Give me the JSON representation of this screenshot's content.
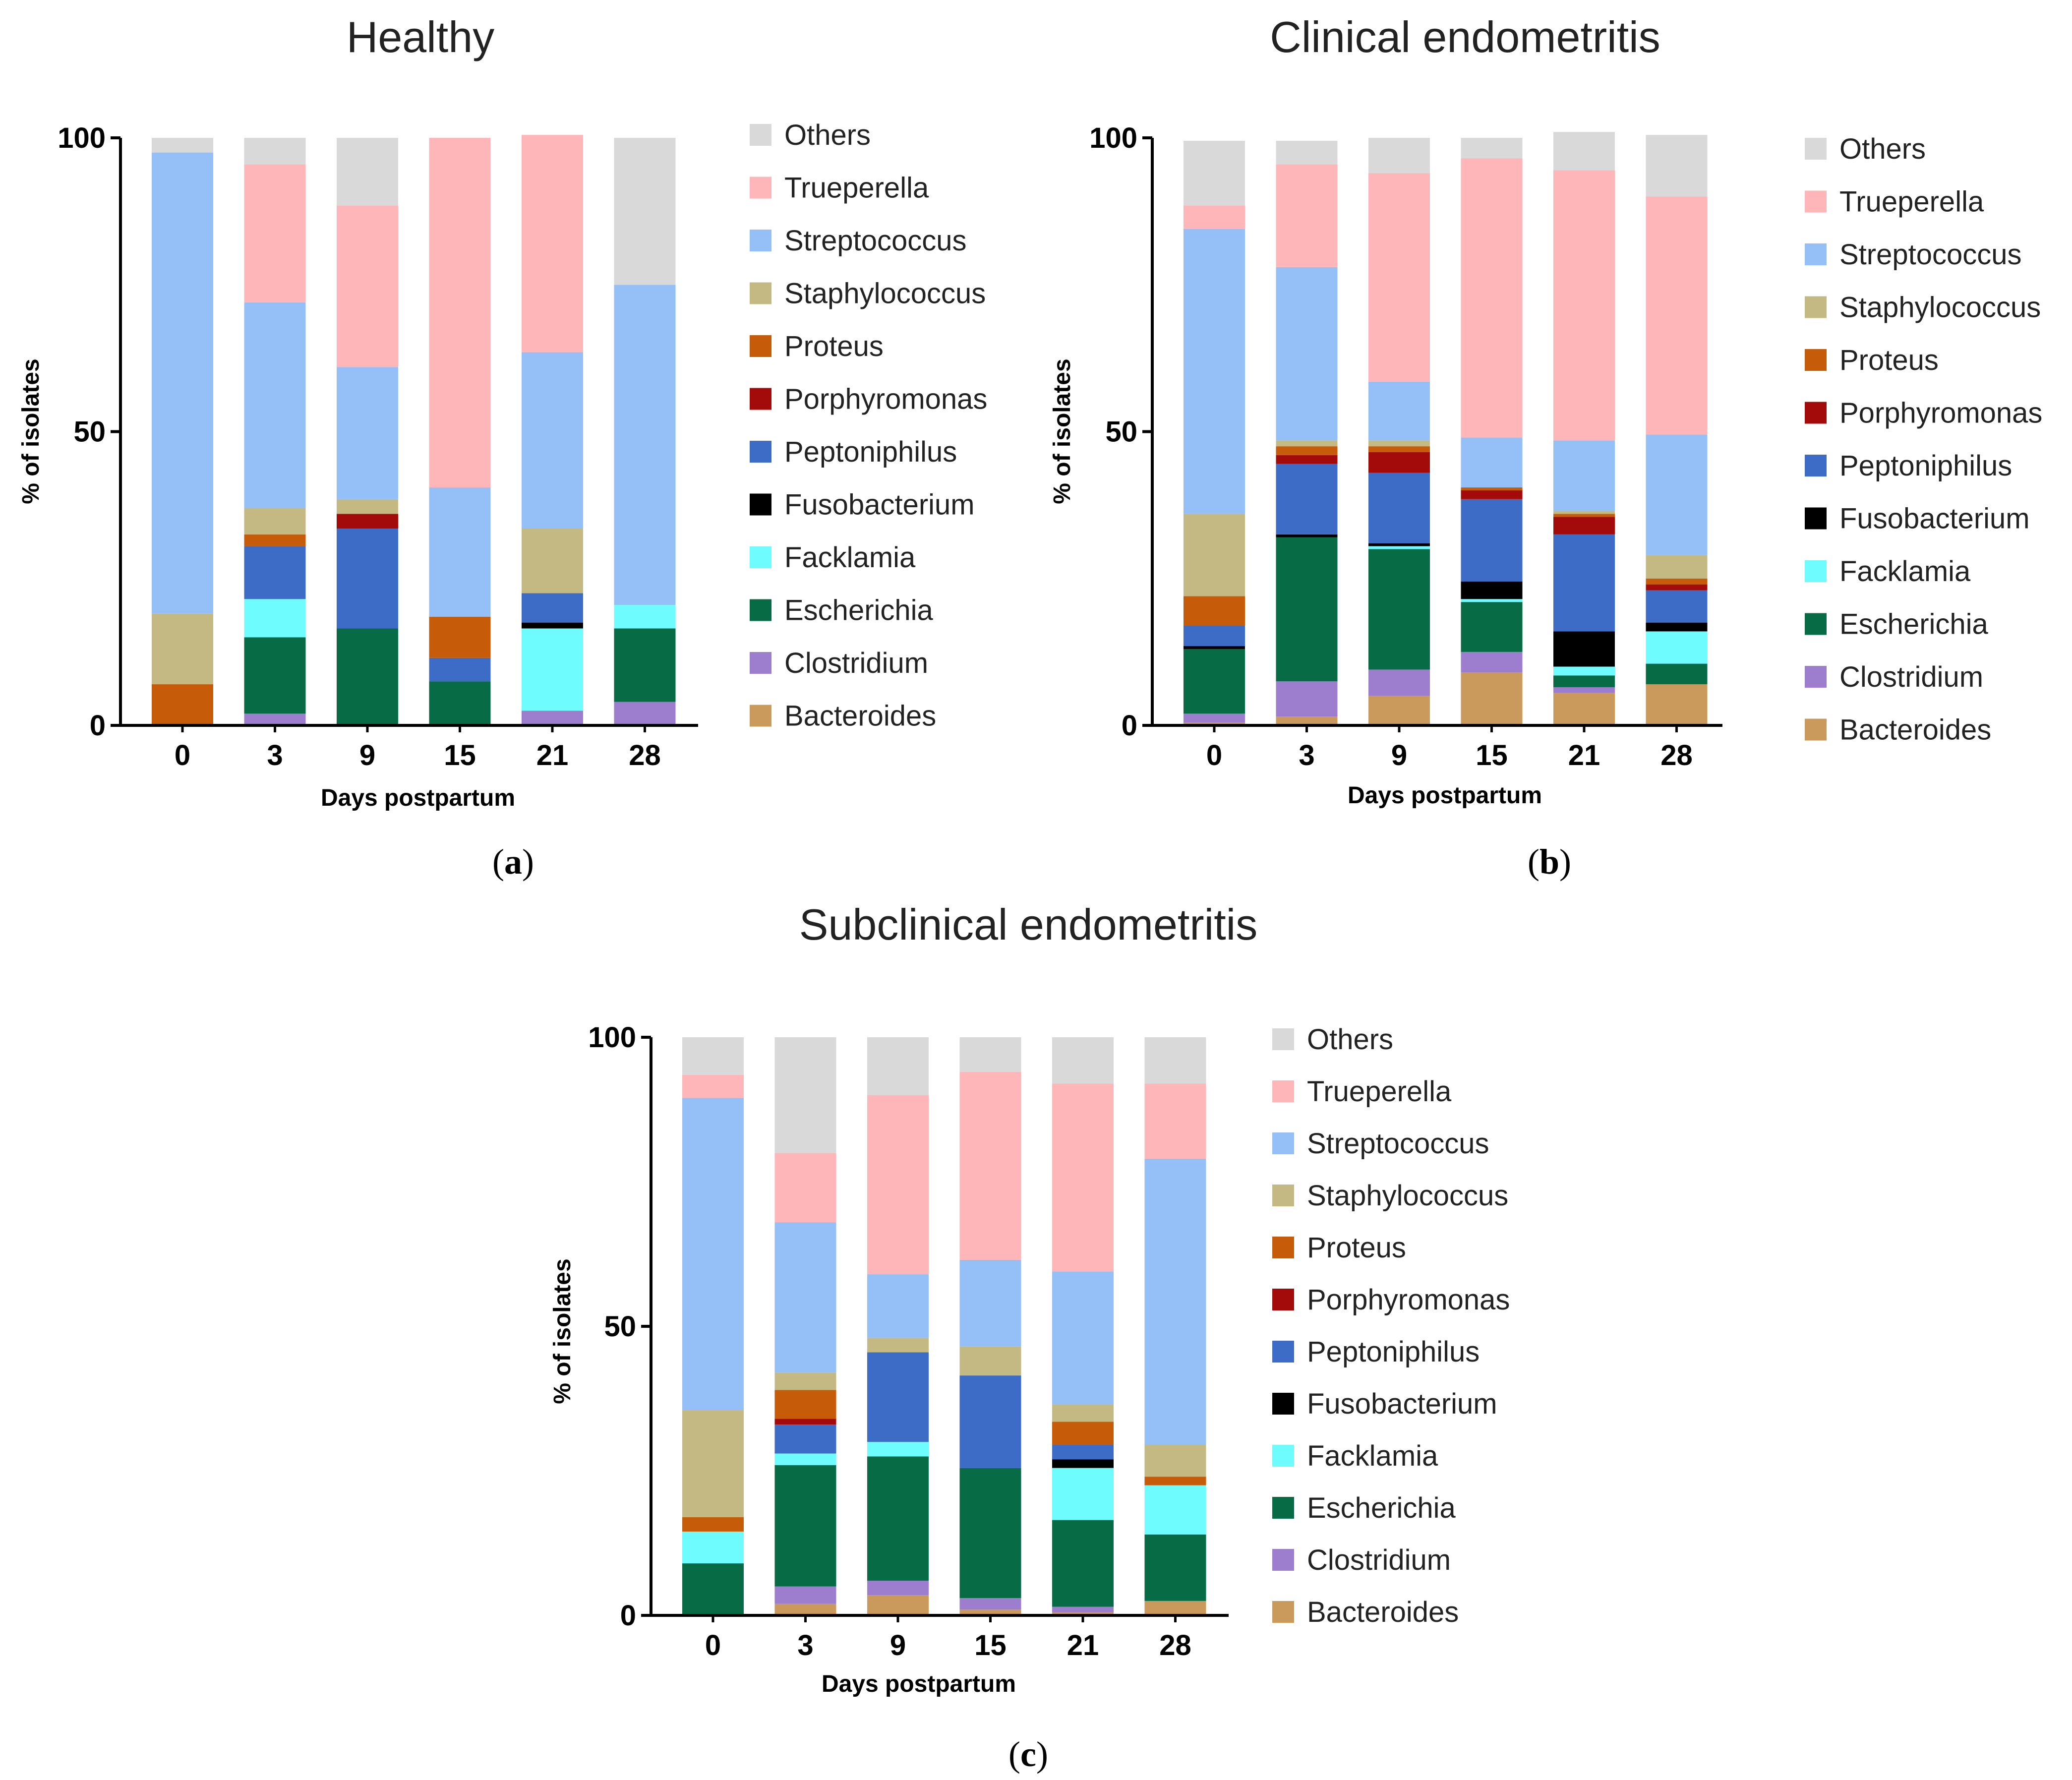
{
  "colors": {
    "Others": "#d9d9d9",
    "Trueperella": "#ffb6b9",
    "Streptococcus": "#94bff7",
    "Staphylococcus": "#c4b883",
    "Proteus": "#c65b0a",
    "Porphyromonas": "#a30b0b",
    "Peptoniphilus": "#3d6cc7",
    "Fusobacterium": "#000000",
    "Facklamia": "#6efcff",
    "Escherichia": "#076c46",
    "Clostridium": "#9d7dce",
    "Bacteroides": "#c99a5b"
  },
  "legend": [
    "Others",
    "Trueperella",
    "Streptococcus",
    "Staphylococcus",
    "Proteus",
    "Porphyromonas",
    "Peptoniphilus",
    "Fusobacterium",
    "Facklamia",
    "Escherichia",
    "Clostridium",
    "Bacteroides"
  ],
  "chart_data": [
    {
      "type": "bar",
      "stacked": true,
      "title": "Healthy",
      "tag": "a",
      "xlabel": "Days postpartum",
      "ylabel": "% of isolates",
      "ylim": [
        0,
        100
      ],
      "yticks": [
        0,
        50,
        100
      ],
      "categories": [
        "0",
        "3",
        "9",
        "15",
        "21",
        "28"
      ],
      "series": [
        {
          "name": "Bacteroides",
          "values": [
            0,
            0,
            0,
            0,
            0,
            0
          ]
        },
        {
          "name": "Clostridium",
          "values": [
            0,
            2,
            0,
            0,
            2.5,
            4
          ]
        },
        {
          "name": "Escherichia",
          "values": [
            0,
            13,
            16.5,
            7.5,
            0,
            12.5
          ]
        },
        {
          "name": "Facklamia",
          "values": [
            0,
            6.5,
            0,
            0,
            14,
            4
          ]
        },
        {
          "name": "Fusobacterium",
          "values": [
            0,
            0,
            0,
            0,
            1,
            0
          ]
        },
        {
          "name": "Peptoniphilus",
          "values": [
            0,
            9,
            17,
            4,
            5,
            0
          ]
        },
        {
          "name": "Porphyromonas",
          "values": [
            0,
            0,
            2.5,
            0,
            0,
            0
          ]
        },
        {
          "name": "Proteus",
          "values": [
            7,
            2,
            0,
            7,
            0,
            0
          ]
        },
        {
          "name": "Staphylococcus",
          "values": [
            12,
            4.5,
            2.5,
            0,
            11,
            0
          ]
        },
        {
          "name": "Streptococcus",
          "values": [
            78.5,
            35,
            22.5,
            22,
            30,
            54.5
          ]
        },
        {
          "name": "Trueperella",
          "values": [
            0,
            23.5,
            27.5,
            59.5,
            37,
            0
          ]
        },
        {
          "name": "Others",
          "values": [
            2.5,
            4.5,
            11.5,
            0,
            0,
            25
          ]
        }
      ]
    },
    {
      "type": "bar",
      "stacked": true,
      "title": "Clinical endometritis",
      "tag": "b",
      "xlabel": "Days postpartum",
      "ylabel": "% of isolates",
      "ylim": [
        0,
        100
      ],
      "yticks": [
        0,
        50,
        100
      ],
      "categories": [
        "0",
        "3",
        "9",
        "15",
        "21",
        "28"
      ],
      "series": [
        {
          "name": "Bacteroides",
          "values": [
            0.5,
            1.5,
            5,
            9,
            5.5,
            7
          ]
        },
        {
          "name": "Clostridium",
          "values": [
            1.5,
            6,
            4.5,
            3.5,
            1,
            0
          ]
        },
        {
          "name": "Escherichia",
          "values": [
            11,
            24.5,
            20.5,
            8.5,
            2,
            3.5
          ]
        },
        {
          "name": "Facklamia",
          "values": [
            0,
            0,
            0.5,
            0.5,
            1.5,
            5.5
          ]
        },
        {
          "name": "Fusobacterium",
          "values": [
            0.5,
            0.5,
            0.5,
            3,
            6,
            1.5
          ]
        },
        {
          "name": "Peptoniphilus",
          "values": [
            3.5,
            12,
            12,
            14,
            16.5,
            5.5
          ]
        },
        {
          "name": "Porphyromonas",
          "values": [
            0,
            1.5,
            3.5,
            1.5,
            3,
            1
          ]
        },
        {
          "name": "Proteus",
          "values": [
            5,
            1.5,
            1,
            0.5,
            0.5,
            1
          ]
        },
        {
          "name": "Staphylococcus",
          "values": [
            14,
            1,
            1,
            0,
            0.5,
            4
          ]
        },
        {
          "name": "Streptococcus",
          "values": [
            48.5,
            29.5,
            10,
            8.5,
            12,
            20.5
          ]
        },
        {
          "name": "Trueperella",
          "values": [
            4,
            17.5,
            35.5,
            47.5,
            46,
            40.5
          ]
        },
        {
          "name": "Others",
          "values": [
            11,
            4,
            6,
            3.5,
            6.5,
            10.5
          ]
        }
      ]
    },
    {
      "type": "bar",
      "stacked": true,
      "title": "Subclinical endometritis",
      "tag": "c",
      "xlabel": "Days postpartum",
      "ylabel": "% of isolates",
      "ylim": [
        0,
        100
      ],
      "yticks": [
        0,
        50,
        100
      ],
      "categories": [
        "0",
        "3",
        "9",
        "15",
        "21",
        "28"
      ],
      "series": [
        {
          "name": "Bacteroides",
          "values": [
            0,
            2,
            3.5,
            1,
            0.5,
            2.5
          ]
        },
        {
          "name": "Clostridium",
          "values": [
            0,
            3,
            2.5,
            2,
            1,
            0
          ]
        },
        {
          "name": "Escherichia",
          "values": [
            9,
            21,
            21.5,
            22.5,
            15,
            11.5
          ]
        },
        {
          "name": "Facklamia",
          "values": [
            5.5,
            2,
            2.5,
            0,
            9,
            8.5
          ]
        },
        {
          "name": "Fusobacterium",
          "values": [
            0,
            0,
            0,
            0,
            1.5,
            0
          ]
        },
        {
          "name": "Peptoniphilus",
          "values": [
            0,
            5,
            15.5,
            16,
            2.5,
            0
          ]
        },
        {
          "name": "Porphyromonas",
          "values": [
            0,
            1,
            0,
            0,
            0,
            0
          ]
        },
        {
          "name": "Proteus",
          "values": [
            2.5,
            5,
            0,
            0,
            4,
            1.5
          ]
        },
        {
          "name": "Staphylococcus",
          "values": [
            18.5,
            3,
            2.5,
            5,
            3,
            5.5
          ]
        },
        {
          "name": "Streptococcus",
          "values": [
            54,
            26,
            11,
            15,
            23,
            49.5
          ]
        },
        {
          "name": "Trueperella",
          "values": [
            4,
            12,
            31,
            32.5,
            32.5,
            13
          ]
        },
        {
          "name": "Others",
          "values": [
            6.5,
            20,
            10,
            6,
            8,
            8
          ]
        }
      ]
    }
  ]
}
